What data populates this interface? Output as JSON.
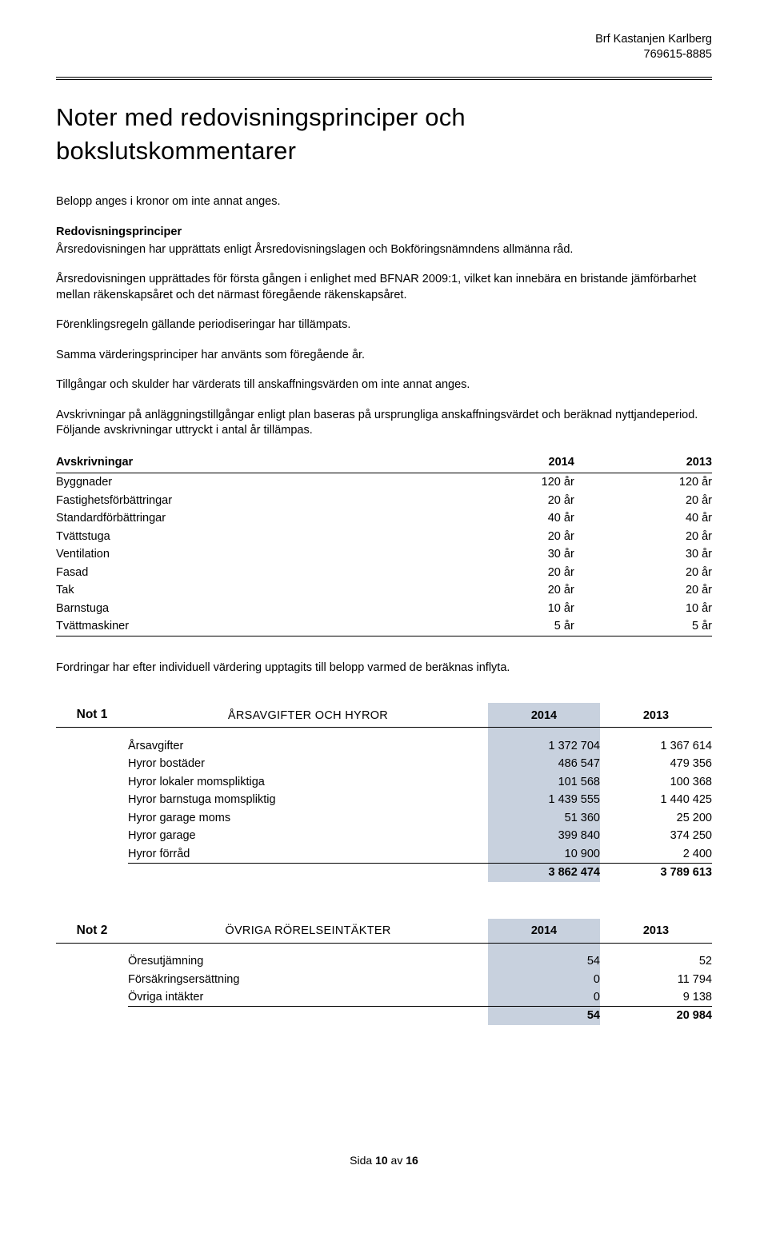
{
  "header": {
    "org_name": "Brf Kastanjen Karlberg",
    "org_number": "769615-8885"
  },
  "title": "Noter med redovisningsprinciper och bokslutskommentarer",
  "intro_line": "Belopp anges i kronor om inte annat anges.",
  "principles": {
    "heading": "Redovisningsprinciper",
    "p1": "Årsredovisningen har upprättats enligt Årsredovisningslagen och Bokföringsnämndens allmänna råd.",
    "p2": "Årsredovisningen upprättades för första gången i enlighet med BFNAR 2009:1, vilket kan innebära en bristande jämförbarhet mellan räkenskapsåret och det närmast föregående räkenskapsåret.",
    "p3": "Förenklingsregeln gällande periodiseringar har tillämpats.",
    "p4": "Samma värderingsprinciper har använts som föregående år.",
    "p5": "Tillgångar och skulder har värderats till anskaffningsvärden om inte annat anges.",
    "p6": "Avskrivningar på anläggningstillgångar enligt plan baseras på ursprungliga anskaffningsvärdet och beräknad nyttjandeperiod. Följande avskrivningar uttryckt i antal år tillämpas."
  },
  "avskrivningar": {
    "heading": "Avskrivningar",
    "year1": "2014",
    "year2": "2013",
    "rows": [
      {
        "label": "Byggnader",
        "y1": "120 år",
        "y2": "120 år"
      },
      {
        "label": "Fastighetsförbättringar",
        "y1": "20 år",
        "y2": "20 år"
      },
      {
        "label": "Standardförbättringar",
        "y1": "40 år",
        "y2": "40 år"
      },
      {
        "label": "Tvättstuga",
        "y1": "20 år",
        "y2": "20 år"
      },
      {
        "label": "Ventilation",
        "y1": "30 år",
        "y2": "30 år"
      },
      {
        "label": "Fasad",
        "y1": "20 år",
        "y2": "20 år"
      },
      {
        "label": "Tak",
        "y1": "20 år",
        "y2": "20 år"
      },
      {
        "label": "Barnstuga",
        "y1": "10 år",
        "y2": "10 år"
      },
      {
        "label": "Tvättmaskiner",
        "y1": "5 år",
        "y2": "5 år"
      }
    ]
  },
  "fordringar_line": "Fordringar har efter individuell värdering upptagits till belopp varmed de beräknas inflyta.",
  "not1": {
    "num": "Not 1",
    "title": "ÅRSAVGIFTER OCH HYROR",
    "year1": "2014",
    "year2": "2013",
    "rows": [
      {
        "label": "Årsavgifter",
        "v1": "1 372 704",
        "v2": "1 367 614"
      },
      {
        "label": "Hyror bostäder",
        "v1": "486 547",
        "v2": "479 356"
      },
      {
        "label": "Hyror lokaler momspliktiga",
        "v1": "101 568",
        "v2": "100 368"
      },
      {
        "label": "Hyror barnstuga momspliktig",
        "v1": "1 439 555",
        "v2": "1 440 425"
      },
      {
        "label": "Hyror garage moms",
        "v1": "51 360",
        "v2": "25 200"
      },
      {
        "label": "Hyror garage",
        "v1": "399 840",
        "v2": "374 250"
      },
      {
        "label": "Hyror förråd",
        "v1": "10 900",
        "v2": "2 400"
      }
    ],
    "total": {
      "v1": "3 862 474",
      "v2": "3 789 613"
    }
  },
  "not2": {
    "num": "Not 2",
    "title": "ÖVRIGA RÖRELSEINTÄKTER",
    "year1": "2014",
    "year2": "2013",
    "rows": [
      {
        "label": "Öresutjämning",
        "v1": "54",
        "v2": "52"
      },
      {
        "label": "Försäkringsersättning",
        "v1": "0",
        "v2": "11 794"
      },
      {
        "label": "Övriga intäkter",
        "v1": "0",
        "v2": "9 138"
      }
    ],
    "total": {
      "v1": "54",
      "v2": "20 984"
    }
  },
  "footer": {
    "prefix": "Sida ",
    "page": "10",
    "middle": " av ",
    "total": "16"
  },
  "style": {
    "highlight_color": "#c8d1de",
    "text_color": "#000000",
    "background_color": "#ffffff"
  }
}
